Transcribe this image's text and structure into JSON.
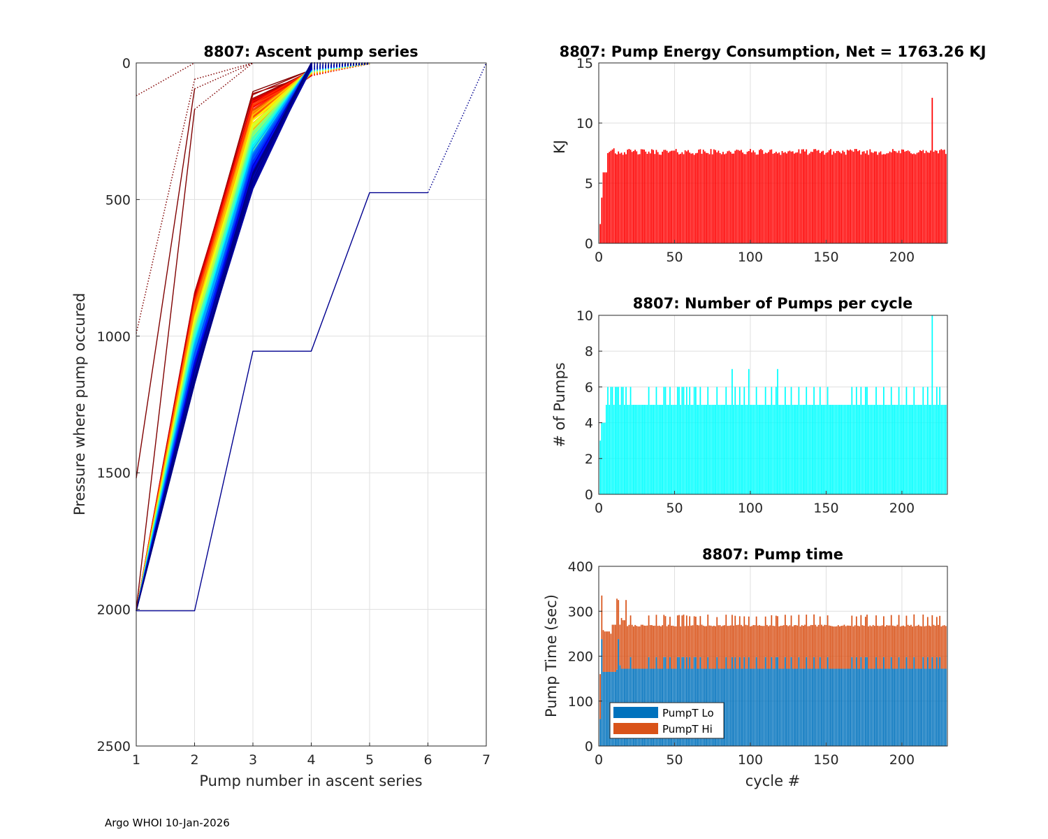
{
  "footer": "Argo WHOI 10-Jan-2026",
  "chart_data": [
    {
      "id": "ascent",
      "type": "line",
      "title": "8807: Ascent pump series",
      "xlabel": "Pump number in ascent series",
      "ylabel": "Pressure where pump occured",
      "xlim": [
        1,
        7
      ],
      "ylim": [
        0,
        2500
      ],
      "y_reversed": true,
      "grid": true,
      "xticks": [
        "1",
        "2",
        "3",
        "4",
        "5",
        "6",
        "7"
      ],
      "yticks": [
        "0",
        "500",
        "1000",
        "1500",
        "2000",
        "2500"
      ],
      "colormap": "jet",
      "series_count_estimate": 230,
      "representative_profiles": [
        {
          "name": "early deep-pump profile",
          "x": [
            1,
            2,
            3,
            4,
            5,
            6,
            7
          ],
          "y": [
            2005,
            2005,
            1055,
            1055,
            475,
            475,
            0
          ]
        },
        {
          "name": "early shallow profile A",
          "x": [
            1,
            2
          ],
          "y": [
            120,
            0
          ]
        },
        {
          "name": "early shallow profile B",
          "x": [
            1,
            2,
            3
          ],
          "y": [
            990,
            60,
            0
          ]
        },
        {
          "name": "early shallow profile C",
          "x": [
            1,
            2,
            3
          ],
          "y": [
            1520,
            95,
            0
          ]
        },
        {
          "name": "early shallow profile D",
          "x": [
            1,
            2,
            3
          ],
          "y": [
            2000,
            170,
            0
          ]
        },
        {
          "name": "typical profile (early, red)",
          "x": [
            1,
            2,
            3,
            4,
            5
          ],
          "y": [
            2005,
            850,
            140,
            20,
            0
          ]
        },
        {
          "name": "typical profile (mid, green)",
          "x": [
            1,
            2,
            3,
            4,
            5
          ],
          "y": [
            2005,
            980,
            260,
            10,
            0
          ]
        },
        {
          "name": "typical profile (late, blue)",
          "x": [
            1,
            2,
            3,
            4,
            5
          ],
          "y": [
            2005,
            1150,
            450,
            0,
            0
          ]
        }
      ]
    },
    {
      "id": "energy",
      "type": "bar",
      "title": "8807: Pump Energy Consumption,  Net = 1763.26 KJ",
      "xlabel": "",
      "ylabel": "KJ",
      "xlim": [
        0,
        230
      ],
      "ylim": [
        0,
        15
      ],
      "xticks": [
        "0",
        "50",
        "100",
        "150",
        "200"
      ],
      "yticks": [
        "0",
        "5",
        "10",
        "15"
      ],
      "color": "#ff0000",
      "grid": true,
      "cycles_estimate": 229,
      "typical_value": 7.6,
      "first_values": [
        1.6,
        3.8,
        5.9,
        5.9,
        5.9,
        7.5,
        7.6,
        7.7,
        7.8,
        7.9
      ],
      "peak": {
        "cycle": 220,
        "value": 12.1
      }
    },
    {
      "id": "npumps",
      "type": "bar",
      "title": "8807: Number of Pumps per cycle",
      "xlabel": "",
      "ylabel": "# of Pumps",
      "xlim": [
        0,
        230
      ],
      "ylim": [
        0,
        10
      ],
      "xticks": [
        "0",
        "50",
        "100",
        "150",
        "200"
      ],
      "yticks": [
        "0",
        "2",
        "4",
        "6",
        "8",
        "10"
      ],
      "color": "#00ffff",
      "grid": true,
      "typical_value": 5,
      "first_values": [
        3,
        4,
        4,
        4,
        5,
        6,
        5,
        6,
        6,
        5,
        6,
        6,
        6,
        5,
        6,
        6,
        5,
        6
      ],
      "six_pump_cycles": [
        21,
        33,
        38,
        43,
        44,
        47,
        52,
        53,
        55,
        56,
        58,
        60,
        63,
        64,
        67,
        72,
        78,
        84,
        90,
        93,
        96,
        104,
        110,
        114,
        117,
        123,
        127,
        132,
        137,
        142,
        146,
        151,
        167,
        170,
        173,
        176,
        177,
        183,
        188,
        193,
        198,
        203,
        208,
        214,
        217,
        223,
        225
      ],
      "seven_pump_cycles": [
        88,
        99,
        118
      ],
      "peak": {
        "cycle": 220,
        "value": 10
      }
    },
    {
      "id": "pumptime",
      "type": "bar",
      "stacked": true,
      "title": "8807: Pump time",
      "xlabel": "cycle #",
      "ylabel": "Pump Time (sec)",
      "xlim": [
        0,
        230
      ],
      "ylim": [
        0,
        400
      ],
      "xticks": [
        "0",
        "50",
        "100",
        "150",
        "200"
      ],
      "yticks": [
        "0",
        "100",
        "200",
        "300",
        "400"
      ],
      "grid": true,
      "legend_position": "bottom-left",
      "series": [
        {
          "name": "PumpT Lo",
          "color": "#0072bd",
          "typical_value": 172,
          "six_pump_value": 198,
          "first_values": [
            60,
            238,
            165,
            165,
            165,
            165,
            165,
            165,
            165,
            165,
            165,
            170,
            238,
            180
          ]
        },
        {
          "name": "PumpT Hi",
          "color": "#d95319",
          "typical_value_total": 268,
          "six_pump_total": 290,
          "first_totals": [
            160,
            335,
            258,
            255,
            255,
            255,
            255,
            250,
            270,
            270,
            270,
            328,
            325,
            270,
            285,
            280,
            280,
            325
          ]
        }
      ]
    }
  ]
}
